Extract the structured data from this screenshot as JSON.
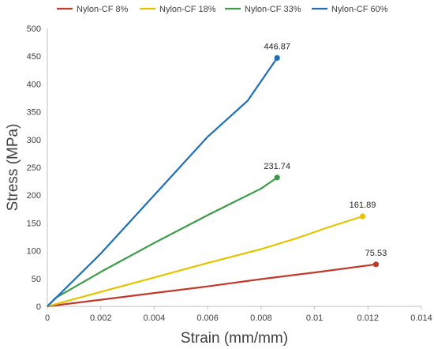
{
  "chart_data": {
    "type": "line",
    "title": "",
    "xlabel": "Strain (mm/mm)",
    "ylabel": "Stress (MPa)",
    "xlim": [
      0,
      0.014
    ],
    "ylim": [
      0,
      500
    ],
    "xticks": [
      0,
      0.002,
      0.004,
      0.006,
      0.008,
      0.01,
      0.012,
      0.014
    ],
    "xtick_labels": [
      "0",
      "0.002",
      "0.004",
      "0.006",
      "0.008",
      "0.01",
      "0.012",
      "0.014"
    ],
    "yticks": [
      0,
      50,
      100,
      150,
      200,
      250,
      300,
      350,
      400,
      450,
      500
    ],
    "ytick_labels": [
      "0",
      "50",
      "100",
      "150",
      "200",
      "250",
      "300",
      "350",
      "400",
      "450",
      "500"
    ],
    "grid": "none",
    "legend_position": "top",
    "series": [
      {
        "name": "Nylon-CF 8%",
        "color": "#c0392b",
        "x": [
          0,
          0.002,
          0.004,
          0.006,
          0.008,
          0.01,
          0.0123
        ],
        "y": [
          0,
          12,
          24,
          36,
          49,
          61,
          75.53
        ],
        "end_label": "75.53"
      },
      {
        "name": "Nylon-CF 18%",
        "color": "#e6c300",
        "x": [
          0,
          0.002,
          0.004,
          0.006,
          0.008,
          0.0093,
          0.0105,
          0.0118
        ],
        "y": [
          0,
          26,
          52,
          78,
          103,
          122,
          142,
          161.89
        ],
        "end_label": "161.89"
      },
      {
        "name": "Nylon-CF 33%",
        "color": "#3d9b47",
        "x": [
          0,
          0.0003,
          0.002,
          0.004,
          0.006,
          0.008,
          0.0086
        ],
        "y": [
          0,
          15,
          62,
          114,
          164,
          212,
          231.74
        ],
        "end_label": "231.74"
      },
      {
        "name": "Nylon-CF 60%",
        "color": "#1f6fb5",
        "x": [
          0,
          0.002,
          0.004,
          0.006,
          0.0075,
          0.0086
        ],
        "y": [
          0,
          95,
          200,
          305,
          370,
          446.87
        ],
        "end_label": "446.87"
      }
    ]
  }
}
